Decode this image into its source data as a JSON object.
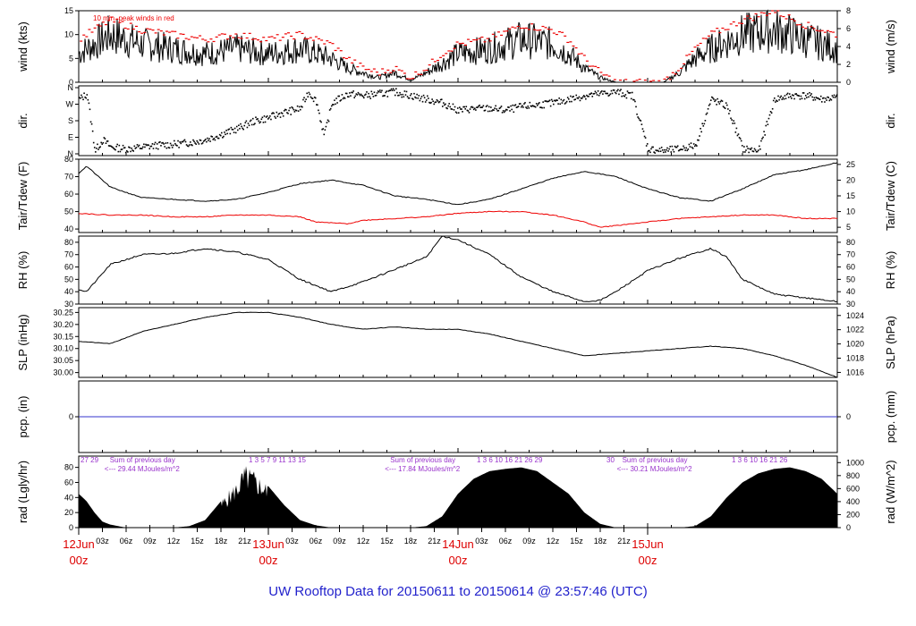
{
  "title": "UW Rooftop Data for 20150611  to  20150614 @ 23:57:46  (UTC)",
  "colors": {
    "title": "#2222cc",
    "date": "#dd0000",
    "peak": "#ee0000",
    "dew": "#ee0000",
    "pcp": "#3333cc",
    "sun": "#9933cc",
    "trace": "#000000"
  },
  "x_axis": {
    "hour_labels": [
      "03z",
      "06z",
      "09z",
      "12z",
      "15z",
      "18z",
      "21z",
      "03z",
      "06z",
      "09z",
      "12z",
      "15z",
      "18z",
      "21z",
      "03z",
      "06z",
      "09z",
      "12z",
      "15z",
      "18z",
      "21z"
    ],
    "day_labels": [
      {
        "date": "12Jun",
        "hour": "00z"
      },
      {
        "date": "13Jun",
        "hour": "00z"
      },
      {
        "date": "14Jun",
        "hour": "00z"
      },
      {
        "date": "15Jun",
        "hour": "00z"
      }
    ]
  },
  "chart_data": [
    {
      "type": "line",
      "id": "wind",
      "ylabel": "wind (kts)",
      "ylabel_right": "wind (m/s)",
      "ylim": [
        0,
        15
      ],
      "yticks": [
        "0",
        "5",
        "10",
        "15"
      ],
      "ylim_right": [
        0,
        8
      ],
      "yticks_right": [
        "0",
        "2",
        "4",
        "6",
        "8"
      ],
      "annotation": "10 min. peak winds in red",
      "x_range_hours": [
        0,
        96
      ],
      "series": [
        {
          "x": [
            0,
            4,
            8,
            12,
            16,
            20,
            24,
            28,
            32,
            34,
            36,
            38,
            40,
            42,
            44,
            46,
            48,
            52,
            56,
            60,
            62,
            64,
            66,
            68,
            69,
            70,
            72,
            74,
            76,
            78,
            80,
            84,
            88,
            92,
            96
          ],
          "values": [
            6,
            10,
            8,
            7,
            6,
            7,
            6,
            7,
            5,
            3,
            2,
            1,
            2,
            0.5,
            2,
            4,
            6,
            7,
            9,
            8,
            6,
            3,
            1,
            0,
            0,
            0,
            0,
            0,
            2,
            5,
            7,
            10,
            11,
            9,
            7
          ]
        },
        {
          "x": [
            0,
            4,
            8,
            12,
            16,
            20,
            24,
            28,
            32,
            34,
            36,
            38,
            40,
            42,
            44,
            46,
            48,
            52,
            56,
            60,
            62,
            64,
            66,
            68,
            69,
            70,
            72,
            74,
            76,
            78,
            80,
            84,
            88,
            92,
            96
          ],
          "values": [
            9,
            13,
            11,
            10,
            9,
            10,
            9,
            10,
            8,
            5,
            3,
            2,
            3,
            1,
            3,
            6,
            8,
            9,
            12,
            11,
            9,
            5,
            2,
            0,
            0,
            0,
            0,
            0,
            3,
            7,
            10,
            13,
            15,
            12,
            10
          ]
        }
      ]
    },
    {
      "type": "scatter",
      "id": "dir",
      "ylabel": "dir.",
      "ylabel_right": "dir.",
      "yticks": [
        "N",
        "E",
        "S",
        "W",
        "N"
      ],
      "x_range_hours": [
        0,
        96
      ],
      "series": [
        {
          "x": [
            0,
            1,
            2,
            3,
            4,
            6,
            8,
            10,
            12,
            14,
            16,
            18,
            20,
            22,
            24,
            26,
            28,
            29,
            30,
            31,
            32,
            34,
            36,
            38,
            40,
            42,
            44,
            46,
            48,
            50,
            52,
            54,
            56,
            58,
            60,
            62,
            64,
            66,
            68,
            70,
            72,
            74,
            76,
            78,
            80,
            82,
            84,
            86,
            88,
            90,
            92,
            94,
            96
          ],
          "values": [
            300,
            330,
            20,
            80,
            40,
            30,
            40,
            50,
            55,
            65,
            80,
            110,
            140,
            180,
            200,
            230,
            250,
            340,
            290,
            100,
            280,
            330,
            320,
            330,
            340,
            320,
            300,
            280,
            240,
            250,
            250,
            240,
            260,
            270,
            280,
            300,
            320,
            330,
            340,
            320,
            30,
            20,
            30,
            50,
            300,
            260,
            30,
            20,
            300,
            320,
            320,
            300,
            310
          ]
        }
      ]
    },
    {
      "type": "line",
      "id": "temp",
      "ylabel": "Tair/Tdew (F)",
      "ylabel_right": "Tair/Tdew (C)",
      "ylim": [
        38,
        80
      ],
      "yticks": [
        "40",
        "50",
        "60",
        "70",
        "80"
      ],
      "ylim_right": [
        3.33,
        26.67
      ],
      "yticks_right": [
        "5",
        "10",
        "15",
        "20",
        "25"
      ],
      "x_range_hours": [
        0,
        96
      ],
      "series": [
        {
          "x": [
            0,
            1,
            4,
            8,
            12,
            16,
            20,
            24,
            28,
            32,
            36,
            40,
            44,
            48,
            52,
            56,
            60,
            64,
            68,
            72,
            76,
            80,
            84,
            88,
            92,
            96
          ],
          "values": [
            72,
            76,
            64,
            58,
            57,
            56,
            57,
            61,
            66,
            68,
            65,
            59,
            57,
            54,
            57,
            63,
            69,
            73,
            70,
            63,
            58,
            56,
            63,
            71,
            74,
            78
          ]
        },
        {
          "x": [
            0,
            4,
            8,
            12,
            16,
            20,
            24,
            28,
            30,
            34,
            36,
            40,
            44,
            48,
            52,
            56,
            60,
            64,
            66,
            68,
            72,
            76,
            80,
            84,
            88,
            92,
            96
          ],
          "values": [
            49,
            48,
            48,
            47,
            47,
            48,
            48,
            47,
            44,
            43,
            45,
            46,
            47,
            49,
            50,
            50,
            48,
            44,
            41,
            42,
            44,
            46,
            47,
            48,
            48,
            46,
            46
          ]
        }
      ]
    },
    {
      "type": "line",
      "id": "rh",
      "ylabel": "RH (%)",
      "ylabel_right": "RH (%)",
      "ylim": [
        30,
        85
      ],
      "yticks": [
        "30",
        "40",
        "50",
        "60",
        "70",
        "80"
      ],
      "yticks_right": [
        "30",
        "40",
        "50",
        "60",
        "70",
        "80"
      ],
      "x_range_hours": [
        0,
        96
      ],
      "series": [
        {
          "x": [
            0,
            1,
            4,
            8,
            12,
            16,
            20,
            24,
            28,
            32,
            36,
            40,
            44,
            46,
            48,
            52,
            56,
            60,
            64,
            66,
            68,
            72,
            76,
            80,
            82,
            84,
            88,
            92,
            96
          ],
          "values": [
            42,
            40,
            62,
            70,
            71,
            75,
            72,
            66,
            50,
            40,
            48,
            58,
            68,
            85,
            82,
            70,
            52,
            40,
            32,
            33,
            40,
            57,
            67,
            75,
            68,
            50,
            38,
            35,
            32
          ]
        }
      ]
    },
    {
      "type": "line",
      "id": "slp",
      "ylabel": "SLP (inHg)",
      "ylabel_right": "SLP (hPa)",
      "ylim": [
        29.98,
        30.27
      ],
      "yticks": [
        "30.00",
        "30.05",
        "30.10",
        "30.15",
        "30.20",
        "30.25"
      ],
      "ylim_right": [
        1015.3,
        1025.1
      ],
      "yticks_right": [
        "1016",
        "1018",
        "1020",
        "1022",
        "1024"
      ],
      "x_range_hours": [
        0,
        96
      ],
      "series": [
        {
          "x": [
            0,
            4,
            8,
            12,
            16,
            20,
            24,
            28,
            32,
            36,
            40,
            44,
            48,
            52,
            56,
            60,
            64,
            68,
            72,
            76,
            80,
            84,
            88,
            92,
            96
          ],
          "values": [
            30.13,
            30.12,
            30.17,
            30.2,
            30.23,
            30.25,
            30.25,
            30.23,
            30.2,
            30.18,
            30.19,
            30.18,
            30.18,
            30.16,
            30.13,
            30.1,
            30.07,
            30.08,
            30.09,
            30.1,
            30.11,
            30.1,
            30.07,
            30.03,
            29.98
          ]
        }
      ]
    },
    {
      "type": "line",
      "id": "pcp",
      "ylabel": "pcp. (in)",
      "ylabel_right": "pcp. (mm)",
      "ylim": [
        -1,
        1
      ],
      "yticks": [
        "0"
      ],
      "yticks_right": [
        "0"
      ],
      "x_range_hours": [
        0,
        96
      ],
      "series": [
        {
          "x": [
            0,
            96
          ],
          "values": [
            0,
            0
          ]
        }
      ]
    },
    {
      "type": "area",
      "id": "rad",
      "ylabel": "rad (Lgly/hr)",
      "ylabel_right": "rad (W/m^2)",
      "ylim": [
        0,
        95
      ],
      "yticks": [
        "0",
        "20",
        "40",
        "60",
        "80"
      ],
      "ylim_right": [
        0,
        1100
      ],
      "yticks_right": [
        "0",
        "200",
        "400",
        "600",
        "800",
        "1000"
      ],
      "x_range_hours": [
        0,
        96
      ],
      "series": [
        {
          "x": [
            0,
            1,
            2,
            3,
            4,
            5,
            6,
            12,
            14,
            16,
            18,
            20,
            21,
            22,
            24,
            26,
            28,
            30,
            32,
            34,
            36,
            38,
            42,
            44,
            46,
            48,
            50,
            52,
            54,
            56,
            58,
            60,
            62,
            64,
            66,
            68,
            70,
            72,
            76,
            78,
            80,
            82,
            84,
            86,
            88,
            90,
            92,
            94,
            96
          ],
          "values": [
            45,
            35,
            20,
            8,
            4,
            2,
            0,
            0,
            2,
            10,
            35,
            60,
            80,
            75,
            55,
            30,
            10,
            3,
            0,
            0,
            0,
            0,
            0,
            2,
            15,
            45,
            65,
            75,
            78,
            80,
            75,
            60,
            45,
            20,
            5,
            0,
            0,
            0,
            0,
            2,
            15,
            40,
            60,
            72,
            78,
            80,
            75,
            65,
            45
          ]
        }
      ],
      "sums": [
        {
          "ticks": "27  29",
          "label": "Sum of previous day",
          "value": "<--- 29.44 MJoules/m^2"
        },
        {
          "ticks": "1    3    5    7    9    11    13    15",
          "label": "Sum of previous day",
          "value": "<--- 17.84 MJoules/m^2"
        },
        {
          "ticks": "1    3    6    10    16    21    26    29",
          "label": "",
          "value": ""
        },
        {
          "ticks": "30",
          "label": "Sum of previous day",
          "value": "<--- 30.21 MJoules/m^2"
        },
        {
          "ticks": "1    3    6    10    16    21    26",
          "label": "",
          "value": ""
        }
      ]
    }
  ]
}
